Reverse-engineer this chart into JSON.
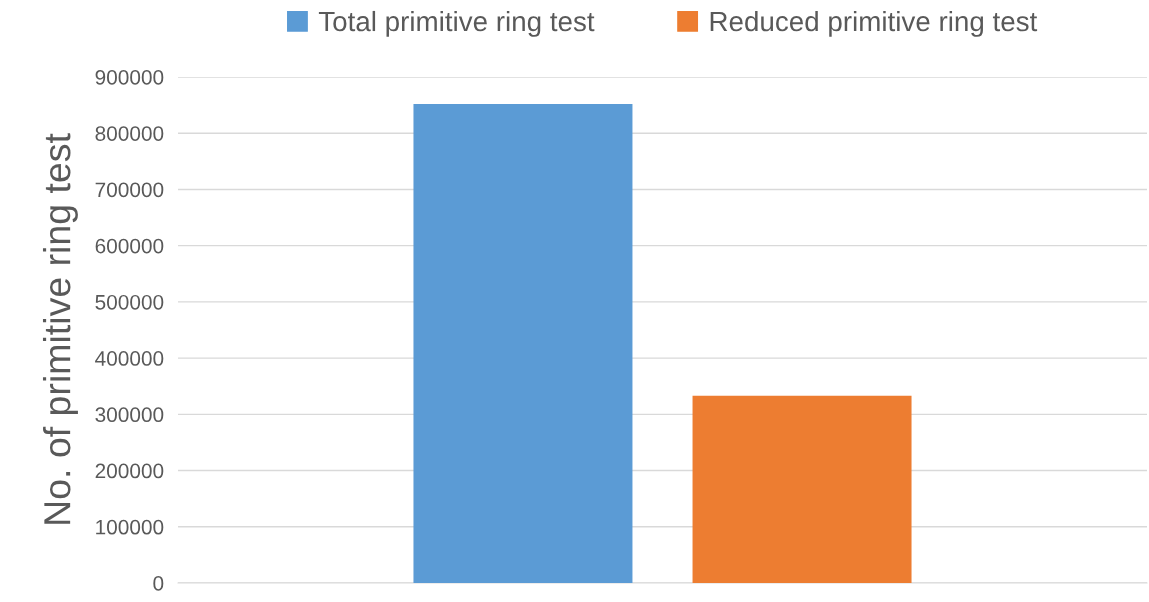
{
  "chart_data": {
    "type": "bar",
    "ylabel": "No. of primitive ring test",
    "categories": [
      null
    ],
    "series": [
      {
        "name": "Total primitive ring test",
        "color": "#5b9bd5",
        "values": [
          852000
        ]
      },
      {
        "name": "Reduced primitive ring test",
        "color": "#ed7d31",
        "values": [
          333000
        ]
      }
    ],
    "ylim": [
      0,
      900000
    ],
    "yticks": [
      0,
      100000,
      200000,
      300000,
      400000,
      500000,
      600000,
      700000,
      800000,
      900000
    ],
    "grid": "y",
    "legend": "top"
  }
}
